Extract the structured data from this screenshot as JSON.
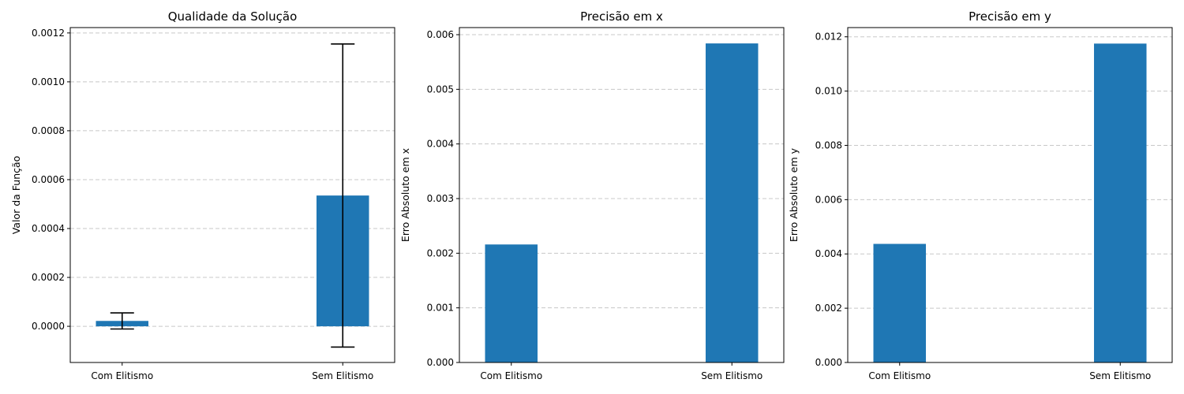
{
  "chart_data": [
    {
      "type": "bar",
      "title": "Qualidade da Solução",
      "xlabel": "",
      "ylabel": "Valor da Função",
      "categories": [
        "Com Elitismo",
        "Sem Elitismo"
      ],
      "values": [
        2.2e-05,
        0.000535
      ],
      "error": [
        3.3e-05,
        0.00062
      ],
      "ylim": [
        -0.000148,
        0.001222
      ],
      "yticks": [
        0.0,
        0.0002,
        0.0004,
        0.0006,
        0.0008,
        0.001,
        0.0012
      ],
      "ytick_labels": [
        "0.0000",
        "0.0002",
        "0.0004",
        "0.0006",
        "0.0008",
        "0.0010",
        "0.0012"
      ],
      "grid": "y-dashed",
      "color": "#1f77b4"
    },
    {
      "type": "bar",
      "title": "Precisão em x",
      "xlabel": "",
      "ylabel": "Erro Absoluto em x",
      "categories": [
        "Com Elitismo",
        "Sem Elitismo"
      ],
      "values": [
        0.00216,
        0.00584
      ],
      "ylim": [
        0,
        0.00613
      ],
      "yticks": [
        0.0,
        0.001,
        0.002,
        0.003,
        0.004,
        0.005,
        0.006
      ],
      "ytick_labels": [
        "0.000",
        "0.001",
        "0.002",
        "0.003",
        "0.004",
        "0.005",
        "0.006"
      ],
      "grid": "y-dashed",
      "color": "#1f77b4"
    },
    {
      "type": "bar",
      "title": "Precisão em y",
      "xlabel": "",
      "ylabel": "Erro Absoluto em y",
      "categories": [
        "Com Elitismo",
        "Sem Elitismo"
      ],
      "values": [
        0.00437,
        0.01175
      ],
      "ylim": [
        0,
        0.01234
      ],
      "yticks": [
        0.0,
        0.002,
        0.004,
        0.006,
        0.008,
        0.01,
        0.012
      ],
      "ytick_labels": [
        "0.000",
        "0.002",
        "0.004",
        "0.006",
        "0.008",
        "0.010",
        "0.012"
      ],
      "grid": "y-dashed",
      "color": "#1f77b4"
    }
  ]
}
